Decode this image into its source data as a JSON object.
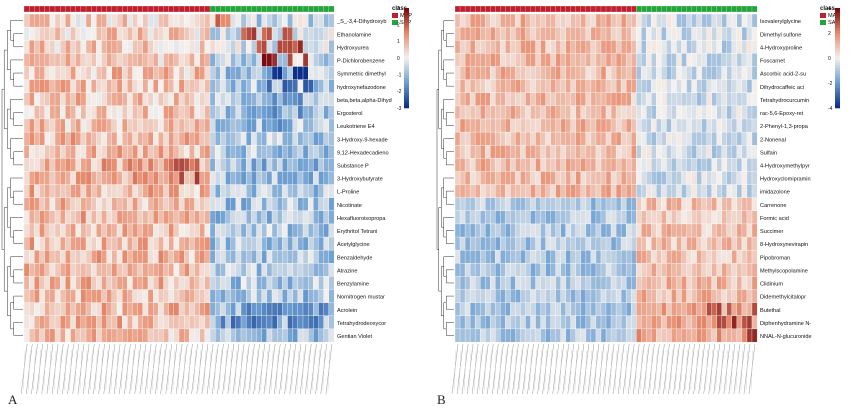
{
  "chart_data": [
    {
      "type": "heatmap",
      "panel": "A",
      "classes": [
        {
          "name": "MAP",
          "color": "#c0202e",
          "count": 36
        },
        {
          "name": "SAP",
          "color": "#22a63a",
          "count": 24
        }
      ],
      "legend_title": "class",
      "colorbar": {
        "ticks": [
          3,
          2,
          1,
          0,
          -1,
          -2,
          -3
        ],
        "min": -3,
        "max": 3,
        "low_color": "#0b2f8a",
        "mid_color": "#f4f1ee",
        "high_color": "#7a0a10"
      },
      "rows": [
        {
          "label": "_S_-3,4-Dihydroxyb",
          "map": 0.3,
          "sap": -0.4,
          "hot": [
            36,
            40
          ],
          "hotv": 1.3
        },
        {
          "label": "Ethanolamine",
          "map": 0.4,
          "sap": -0.3,
          "hot": [
            42,
            52
          ],
          "hotv": 1.8
        },
        {
          "label": "Hydroxyurea",
          "map": 0.4,
          "sap": -0.3,
          "hot": [
            44,
            54
          ],
          "hotv": 1.9
        },
        {
          "label": "P-Dichlorobenzene",
          "map": 0.4,
          "sap": -0.4,
          "hot": [
            46,
            56
          ],
          "hotv": 2.2
        },
        {
          "label": "Symmetric dimethyl",
          "map": 0.5,
          "sap": -0.6,
          "cold": [
            48,
            56
          ],
          "coldv": -2.7
        },
        {
          "label": "hydroxynefazodone",
          "map": 0.5,
          "sap": -0.6,
          "cold": [
            46,
            56
          ],
          "coldv": -1.9
        },
        {
          "label": "beta,beta,alpha-Dihyd",
          "map": 0.5,
          "sap": -0.6,
          "cold": [
            48,
            54
          ],
          "coldv": -1.6
        },
        {
          "label": "Ergosterol",
          "map": 0.5,
          "sap": -0.6,
          "cold": [
            44,
            54
          ],
          "coldv": -1.4
        },
        {
          "label": "Leukotriene E4",
          "map": 0.5,
          "sap": -0.6,
          "cold": [
            46,
            52
          ],
          "coldv": -1.3
        },
        {
          "label": "3-Hydroxy-9-hexade",
          "map": 0.6,
          "sap": -0.6,
          "cold": [
            48,
            52
          ],
          "coldv": -1.2
        },
        {
          "label": "9,12-Hexadecadieno",
          "map": 0.6,
          "sap": -0.6
        },
        {
          "label": "Substance P",
          "map": 0.7,
          "sap": -0.7,
          "hot": [
            28,
            34
          ],
          "hotv": 1.6
        },
        {
          "label": "3-Hydroxybutyrate",
          "map": 0.7,
          "sap": -0.7,
          "hot": [
            30,
            34
          ],
          "hotv": 1.8
        },
        {
          "label": "L-Proline",
          "map": 0.6,
          "sap": -0.6
        },
        {
          "label": "Nicotinate",
          "map": 0.6,
          "sap": -0.6
        },
        {
          "label": "Hexafluoroisopropa",
          "map": 0.6,
          "sap": -0.6
        },
        {
          "label": "Erythritol Tetrani",
          "map": 0.6,
          "sap": -0.6
        },
        {
          "label": "Acetylglycine",
          "map": 0.6,
          "sap": -0.6
        },
        {
          "label": "Benzaldehyde",
          "map": 0.6,
          "sap": -0.6
        },
        {
          "label": "Atrazine",
          "map": 0.6,
          "sap": -0.6
        },
        {
          "label": "Benzylamine",
          "map": 0.6,
          "sap": -0.6
        },
        {
          "label": "Nornitrogen mustar",
          "map": 0.6,
          "sap": -0.6
        },
        {
          "label": "Acrolein",
          "map": 0.6,
          "sap": -0.8,
          "cold": [
            42,
            58
          ],
          "coldv": -1.5
        },
        {
          "label": "Tetrahydrodeoxycor",
          "map": 0.6,
          "sap": -0.8,
          "cold": [
            38,
            58
          ],
          "coldv": -1.7
        },
        {
          "label": "Gentian Violet",
          "map": 0.5,
          "sap": -0.7
        }
      ]
    },
    {
      "type": "heatmap",
      "panel": "B",
      "classes": [
        {
          "name": "MAP",
          "color": "#c0202e",
          "count": 36
        },
        {
          "name": "SAP",
          "color": "#22a63a",
          "count": 24
        }
      ],
      "legend_title": "class",
      "colorbar": {
        "ticks": [
          4,
          2,
          0,
          -2,
          -4
        ],
        "min": -4,
        "max": 4,
        "low_color": "#0b2f8a",
        "mid_color": "#f4f1ee",
        "high_color": "#7a0a10"
      },
      "rows": [
        {
          "label": "Isovalerylglycine",
          "map": 0.6,
          "sap": -0.3
        },
        {
          "label": "Dimethyl sulfone",
          "map": 0.6,
          "sap": -0.3
        },
        {
          "label": "4-Hydroxyproline",
          "map": 0.6,
          "sap": -0.3
        },
        {
          "label": "Foscarnet",
          "map": 0.6,
          "sap": -0.3
        },
        {
          "label": "Ascorbic acid-2-su",
          "map": 0.6,
          "sap": -0.3
        },
        {
          "label": "Dihydrocaffeic aci",
          "map": 0.6,
          "sap": -0.3
        },
        {
          "label": "Tetrahydrocurcumin",
          "map": 0.6,
          "sap": -0.3
        },
        {
          "label": "rac-5,6-Epoxy-ret",
          "map": 0.6,
          "sap": -0.3
        },
        {
          "label": "2-Phenyl-1,3-propa",
          "map": 0.6,
          "sap": -0.3
        },
        {
          "label": "2-Nonenal",
          "map": 0.6,
          "sap": -0.3
        },
        {
          "label": "Sulfain",
          "map": 0.6,
          "sap": -0.3
        },
        {
          "label": "4-Hydroxymethylpyr",
          "map": 0.6,
          "sap": -0.3
        },
        {
          "label": "Hydroxyclomipramin",
          "map": 0.6,
          "sap": -0.3
        },
        {
          "label": "imidazolone",
          "map": 0.6,
          "sap": -0.3
        },
        {
          "label": "Carrenone",
          "map": -0.6,
          "sap": 0.5
        },
        {
          "label": "Formic acid",
          "map": -0.6,
          "sap": 0.5
        },
        {
          "label": "Succimer",
          "map": -0.6,
          "sap": 0.5
        },
        {
          "label": "8-Hydroxynevirapin",
          "map": -0.6,
          "sap": 0.5
        },
        {
          "label": "Pipobroman",
          "map": -0.6,
          "sap": 0.5
        },
        {
          "label": "Methylscopolamine",
          "map": -0.6,
          "sap": 0.6
        },
        {
          "label": "Clidinium",
          "map": -0.6,
          "sap": 0.6
        },
        {
          "label": "Didemethylcitalopr",
          "map": -0.6,
          "sap": 0.6
        },
        {
          "label": "Butethal",
          "map": -0.6,
          "sap": 0.8,
          "hot": [
            50,
            60
          ],
          "hotv": 2.6
        },
        {
          "label": "Diphenhydramine N-",
          "map": -0.6,
          "sap": 0.8,
          "hot": [
            52,
            60
          ],
          "hotv": 2.8
        },
        {
          "label": "NNAL-N-glucuronide",
          "map": -0.6,
          "sap": 0.8,
          "hot": [
            54,
            60
          ],
          "hotv": 3.0
        }
      ]
    }
  ],
  "panel_letters": {
    "a": "A",
    "b": "B"
  }
}
